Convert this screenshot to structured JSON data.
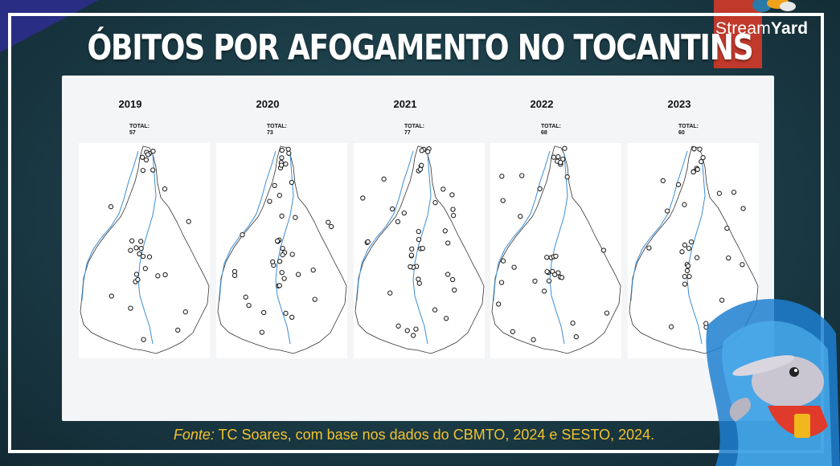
{
  "branding": {
    "logo_prefix": "Stream",
    "logo_suffix": "Yard",
    "accent_red": "#c0392b",
    "title_color": "#ffffff",
    "source_color": "#f2c22e"
  },
  "slide": {
    "title": "ÓBITOS POR AFOGAMENTO NO TOCANTINS",
    "source_label": "Fonte:",
    "source_text": " TC Soares, com base nos dados do CBMTO, 2024 e SESTO, 2024."
  },
  "maps": [
    {
      "year": "2019",
      "total_label": "TOTAL:",
      "total_value": "57"
    },
    {
      "year": "2020",
      "total_label": "TOTAL:",
      "total_value": "73"
    },
    {
      "year": "2021",
      "total_label": "TOTAL:",
      "total_value": "77"
    },
    {
      "year": "2022",
      "total_label": "TOTAL:",
      "total_value": "68"
    },
    {
      "year": "2023",
      "total_label": "TOTAL:",
      "total_value": "60"
    }
  ],
  "icons": {
    "mascot": "dolphin-mascot-icon",
    "top_mascot": "bird-mascot-icon"
  }
}
